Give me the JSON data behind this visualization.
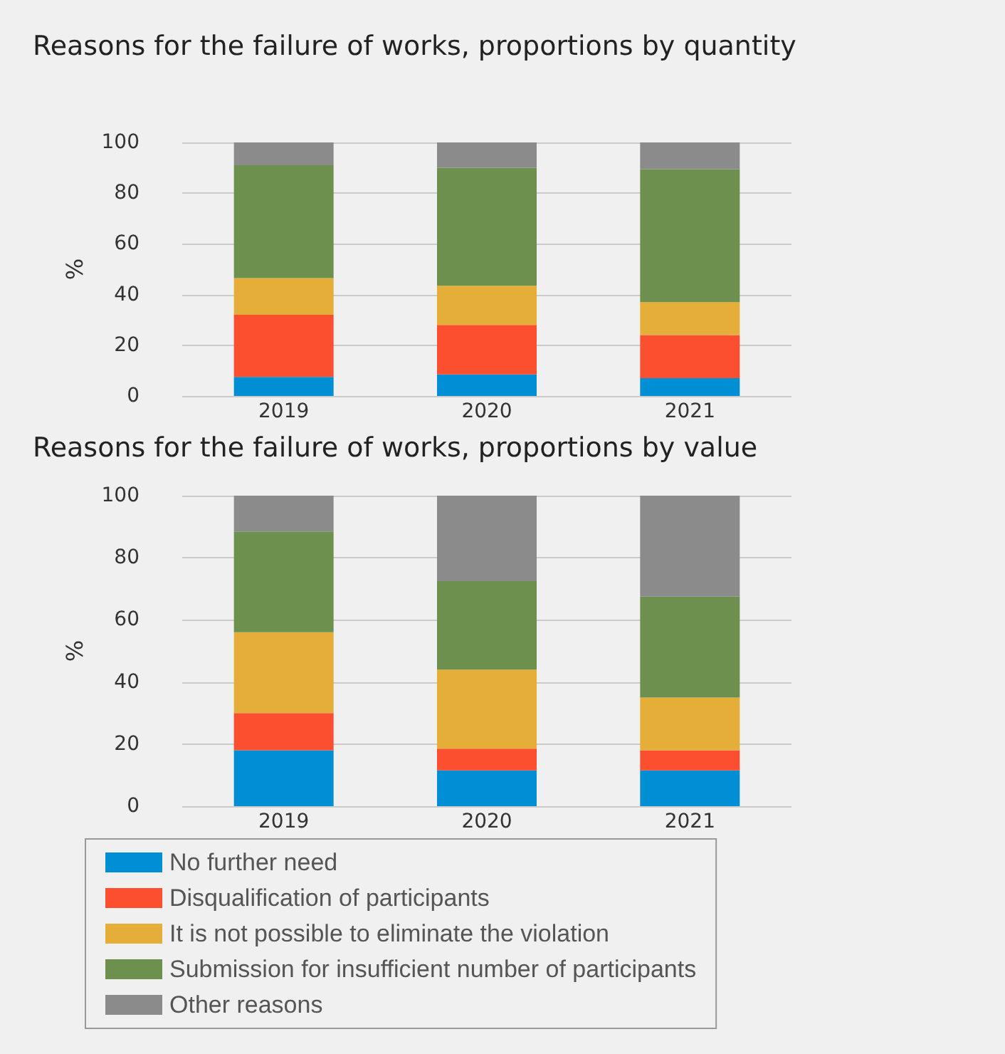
{
  "chart_data": [
    {
      "type": "bar",
      "title": "Reasons for the failure of works, proportions by quantity",
      "ylabel": "%",
      "categories": [
        "2019",
        "2020",
        "2021"
      ],
      "stacked": true,
      "ylim": [
        0,
        100
      ],
      "yticks": [
        0,
        20,
        40,
        60,
        80,
        100
      ],
      "grid": "y",
      "legend": false,
      "series": [
        {
          "color": "#008fd5",
          "values": [
            7.5,
            8.5,
            7
          ]
        },
        {
          "color": "#fc4f30",
          "values": [
            24.5,
            19.5,
            17
          ]
        },
        {
          "color": "#e5ae38",
          "values": [
            14.5,
            15.5,
            13
          ]
        },
        {
          "color": "#6d904f",
          "values": [
            44.5,
            46.5,
            52.5
          ]
        },
        {
          "color": "#8b8b8b",
          "values": [
            9,
            10,
            10.5
          ]
        }
      ]
    },
    {
      "type": "bar",
      "title": "Reasons for the failure of works, proportions by value",
      "ylabel": "%",
      "categories": [
        "2019",
        "2020",
        "2021"
      ],
      "stacked": true,
      "ylim": [
        0,
        100
      ],
      "yticks": [
        0,
        20,
        40,
        60,
        80,
        100
      ],
      "grid": "y",
      "legend": "bottom",
      "series": [
        {
          "name": "No further need",
          "color": "#008fd5",
          "values": [
            18,
            11.5,
            11.5
          ]
        },
        {
          "name": "Disqualification of participants",
          "color": "#fc4f30",
          "values": [
            12,
            7,
            6.5
          ]
        },
        {
          "name": "It is not possible to eliminate the violation",
          "color": "#e5ae38",
          "values": [
            26,
            25.5,
            17
          ]
        },
        {
          "name": "Submission for insufficient number of participants",
          "color": "#6d904f",
          "values": [
            32.5,
            28.5,
            32.5
          ]
        },
        {
          "name": "Other reasons",
          "color": "#8b8b8b",
          "values": [
            11.5,
            27.5,
            32.5
          ]
        }
      ]
    }
  ]
}
